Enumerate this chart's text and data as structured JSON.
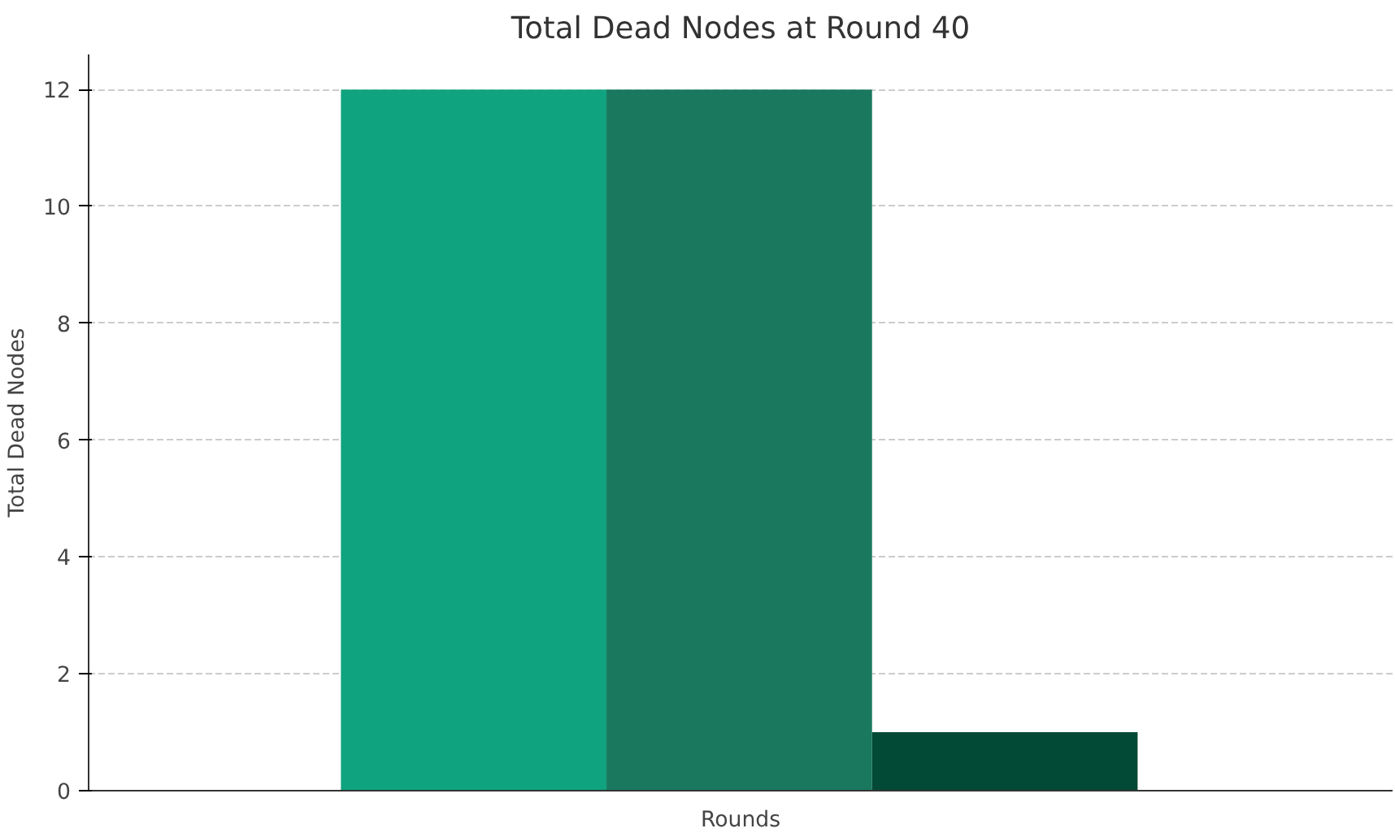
{
  "chart_data": {
    "type": "bar",
    "title": "Total Dead Nodes at Round 40",
    "xlabel": "Rounds",
    "ylabel": "Total Dead Nodes",
    "categories": [
      null,
      null,
      null
    ],
    "values": [
      12,
      12,
      1
    ],
    "colors": [
      "#10a37f",
      "#19785e",
      "#034a36"
    ],
    "ylim": [
      0,
      12.6
    ],
    "yticks": [
      0,
      2,
      4,
      6,
      8,
      10,
      12
    ],
    "grid": "y"
  }
}
